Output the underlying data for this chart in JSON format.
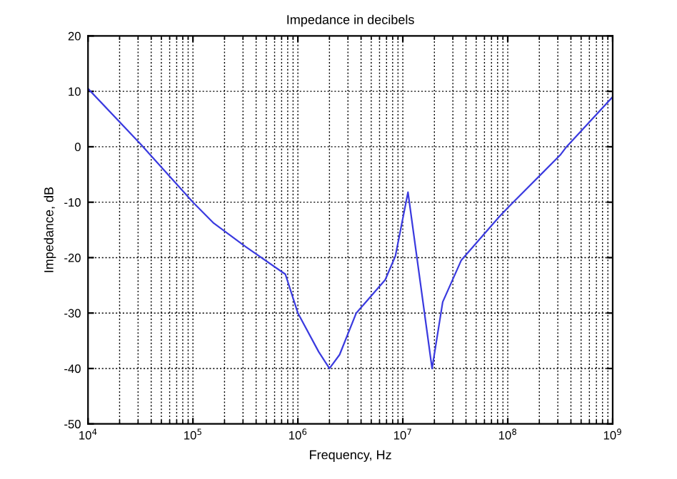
{
  "chart_data": {
    "type": "line",
    "title": "Impedance in decibels",
    "xlabel": "Frequency, Hz",
    "ylabel": "Impedance, dB",
    "log": "x",
    "grid": true,
    "marker": "none",
    "line_style": "solid",
    "xlim": [
      10000,
      1000000000
    ],
    "ylim": [
      -50,
      20
    ],
    "xticks": [
      {
        "value": 10000,
        "label": "10$^{4}$"
      },
      {
        "value": 100000,
        "label": "10$^{5}$"
      },
      {
        "value": 1000000,
        "label": "10$^{6}$"
      },
      {
        "value": 10000000,
        "label": "10$^{7}$"
      },
      {
        "value": 100000000,
        "label": "10$^{8}$"
      },
      {
        "value": 1000000000,
        "label": "10$^{9}$"
      }
    ],
    "yticks": [
      -50,
      -40,
      -30,
      -20,
      -10,
      0,
      10,
      20
    ],
    "series": [
      {
        "color": "#3a3adf",
        "x": [
          10000,
          31623,
          100000,
          158000,
          316000,
          760000,
          1000000,
          1580000,
          2000000,
          2500000,
          3600000,
          6800000,
          8500000,
          11200000,
          19000000,
          24000000,
          36000000,
          83000000,
          100000000,
          316000000,
          363000000,
          1000000000
        ],
        "values": [
          10.5,
          0.5,
          -10,
          -13.8,
          -18,
          -23,
          -30,
          -37,
          -40,
          -37.5,
          -30,
          -24,
          -19.7,
          -8.2,
          -40,
          -28,
          -20.5,
          -12.6,
          -11,
          -1.5,
          0,
          9
        ]
      }
    ]
  }
}
